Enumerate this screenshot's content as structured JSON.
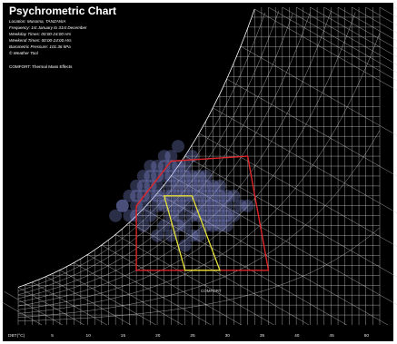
{
  "chart_data": {
    "type": "scatter",
    "title": "Psychrometric Chart",
    "info_lines": [
      "Location: Musoma, TANZANIA",
      "Frequency: 1st January to 31st December",
      "Weekday Times: 00:00-24:00 Hrs",
      "Weekend Times: 00:00-24:00 Hrs",
      "Barometric Pressure: 101.36 kPa",
      "© Weather Tool"
    ],
    "comfort_label": "COMFORT: Thermal Mass Effects",
    "zone_label": "COMFORT",
    "xlabel": "DBT(°C)",
    "x_ticks": [
      "5",
      "10",
      "15",
      "20",
      "25",
      "30",
      "35",
      "40",
      "45",
      "50"
    ],
    "xlim": [
      0,
      52
    ],
    "ylim": [
      0,
      32
    ],
    "colors": {
      "background": "#000000",
      "grid": "#cfcfcf",
      "data_density": "#9aa6ff",
      "thermal_mass_zone": "#e0262b",
      "comfort_zone": "#e7e23a",
      "text": "#ffffff"
    },
    "thermal_mass_zone": [
      [
        17,
        6
      ],
      [
        17,
        12
      ],
      [
        22,
        16.5
      ],
      [
        33,
        17
      ],
      [
        36,
        5.5
      ],
      [
        17,
        5.5
      ]
    ],
    "comfort_zone": [
      [
        21,
        13
      ],
      [
        25,
        13
      ],
      [
        29,
        5.5
      ],
      [
        24,
        5.5
      ]
    ],
    "series": [
      {
        "values": [
          [
            14,
            11
          ],
          [
            15,
            12
          ],
          [
            16,
            13
          ],
          [
            17,
            14
          ],
          [
            18,
            15
          ],
          [
            19,
            16
          ],
          [
            20,
            16
          ],
          [
            21,
            17
          ],
          [
            22,
            17
          ],
          [
            23,
            18
          ],
          [
            16,
            11
          ],
          [
            17,
            12
          ],
          [
            18,
            13
          ],
          [
            19,
            14
          ],
          [
            20,
            14
          ],
          [
            21,
            15
          ],
          [
            22,
            15
          ],
          [
            23,
            16
          ],
          [
            24,
            16
          ],
          [
            25,
            17
          ],
          [
            18,
            10
          ],
          [
            19,
            11
          ],
          [
            20,
            12
          ],
          [
            21,
            13
          ],
          [
            22,
            13
          ],
          [
            23,
            14
          ],
          [
            24,
            14
          ],
          [
            25,
            15
          ],
          [
            26,
            15
          ],
          [
            27,
            15
          ],
          [
            20,
            9
          ],
          [
            21,
            10
          ],
          [
            22,
            11
          ],
          [
            23,
            12
          ],
          [
            24,
            12
          ],
          [
            25,
            13
          ],
          [
            26,
            13
          ],
          [
            27,
            13
          ],
          [
            28,
            14
          ],
          [
            29,
            14
          ],
          [
            22,
            9
          ],
          [
            23,
            10
          ],
          [
            24,
            10
          ],
          [
            25,
            11
          ],
          [
            26,
            11
          ],
          [
            27,
            12
          ],
          [
            28,
            12
          ],
          [
            29,
            12
          ],
          [
            30,
            13
          ],
          [
            31,
            13
          ],
          [
            24,
            8
          ],
          [
            25,
            9
          ],
          [
            26,
            9
          ],
          [
            27,
            10
          ],
          [
            28,
            10
          ],
          [
            29,
            11
          ],
          [
            30,
            11
          ],
          [
            31,
            11
          ],
          [
            32,
            12
          ],
          [
            33,
            12
          ],
          [
            19,
            15
          ],
          [
            20,
            15
          ],
          [
            21,
            16
          ],
          [
            22,
            16
          ],
          [
            18,
            14
          ],
          [
            17,
            13
          ],
          [
            15,
            12
          ],
          [
            23,
            15
          ],
          [
            24,
            15
          ],
          [
            25,
            14
          ],
          [
            26,
            14
          ],
          [
            27,
            14
          ],
          [
            28,
            13
          ],
          [
            29,
            13
          ],
          [
            30,
            12
          ],
          [
            26,
            12
          ],
          [
            27,
            11
          ],
          [
            28,
            11
          ],
          [
            29,
            10
          ],
          [
            30,
            10
          ],
          [
            21,
            12
          ],
          [
            22,
            12
          ],
          [
            23,
            13
          ],
          [
            24,
            13
          ],
          [
            20,
            13
          ],
          [
            19,
            13
          ],
          [
            18,
            12
          ],
          [
            17,
            11
          ],
          [
            22,
            14
          ],
          [
            23,
            11
          ]
        ]
      }
    ]
  }
}
